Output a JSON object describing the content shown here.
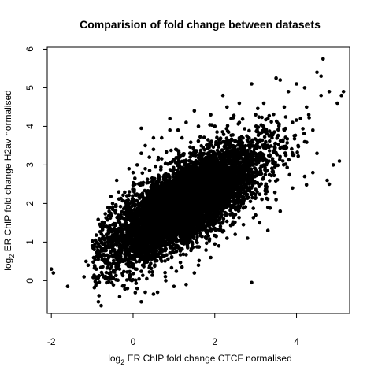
{
  "chart_data": {
    "type": "scatter",
    "title": "Comparision of fold change between datasets",
    "xlabel": {
      "prefix": "log",
      "sub": "2",
      "text": "  ER ChIP fold change CTCF normalised"
    },
    "ylabel": {
      "prefix": "log",
      "sub": "2",
      "text": "  ER ChIP fold change H2av normalised"
    },
    "xlim": [
      -2.1,
      5.3
    ],
    "ylim": [
      -0.85,
      6.05
    ],
    "x_ticks": [
      -2,
      0,
      2,
      4
    ],
    "x_tick_labels": [
      "-2",
      "0",
      "2",
      "4"
    ],
    "y_ticks": [
      0,
      1,
      2,
      3,
      4,
      5,
      6
    ],
    "y_tick_labels": [
      "0",
      "1",
      "2",
      "3",
      "4",
      "5",
      "6"
    ],
    "grid": false,
    "point_color": "#000000",
    "series": [
      {
        "points": [
          [
            -2.0,
            0.3
          ],
          [
            -1.95,
            0.2
          ],
          [
            -1.6,
            -0.15
          ],
          [
            -1.2,
            0.1
          ],
          [
            -1.1,
            0.4
          ],
          [
            -1.15,
            0.5
          ],
          [
            -0.9,
            0.3
          ],
          [
            -0.85,
            -0.55
          ],
          [
            -0.78,
            -0.65
          ],
          [
            -0.6,
            1.3
          ],
          [
            -0.5,
            0.8
          ],
          [
            -0.3,
            0.5
          ],
          [
            -0.1,
            2.9
          ],
          [
            0.2,
            3.3
          ],
          [
            0.3,
            3.5
          ],
          [
            0.2,
            3.95
          ],
          [
            0.5,
            3.4
          ],
          [
            0.2,
            -0.55
          ],
          [
            0.6,
            -0.3
          ],
          [
            0.5,
            3.7
          ],
          [
            0.9,
            4.2
          ],
          [
            0.9,
            3.9
          ],
          [
            1.2,
            3.7
          ],
          [
            1.5,
            4.4
          ],
          [
            1.3,
            4.1
          ],
          [
            1.6,
            4.0
          ],
          [
            2.3,
            4.5
          ],
          [
            2.2,
            4.8
          ],
          [
            2.6,
            4.1
          ],
          [
            2.9,
            5.1
          ],
          [
            3.0,
            4.3
          ],
          [
            3.2,
            4.6
          ],
          [
            3.5,
            5.25
          ],
          [
            3.6,
            5.2
          ],
          [
            3.7,
            4.5
          ],
          [
            3.8,
            4.9
          ],
          [
            4.0,
            5.1
          ],
          [
            4.2,
            5.0
          ],
          [
            4.3,
            4.3
          ],
          [
            4.4,
            3.9
          ],
          [
            4.2,
            3.6
          ],
          [
            4.5,
            5.4
          ],
          [
            4.6,
            5.3
          ],
          [
            4.6,
            4.8
          ],
          [
            4.65,
            5.75
          ],
          [
            4.8,
            4.9
          ],
          [
            5.0,
            4.6
          ],
          [
            5.1,
            4.8
          ],
          [
            5.15,
            4.9
          ],
          [
            5.05,
            3.1
          ],
          [
            4.9,
            3.0
          ],
          [
            4.8,
            2.5
          ],
          [
            4.5,
            3.3
          ],
          [
            4.75,
            2.6
          ],
          [
            4.4,
            2.8
          ],
          [
            4.2,
            2.7
          ],
          [
            2.9,
            -0.05
          ],
          [
            3.3,
            1.3
          ],
          [
            3.6,
            1.8
          ],
          [
            3.1,
            1.5
          ],
          [
            2.8,
            1.1
          ],
          [
            2.5,
            1.2
          ],
          [
            2.1,
            0.9
          ],
          [
            1.9,
            0.6
          ],
          [
            1.6,
            0.4
          ],
          [
            1.5,
            0.2
          ],
          [
            1.3,
            -0.1
          ],
          [
            1.0,
            -0.15
          ],
          [
            0.8,
            0.0
          ],
          [
            0.5,
            -0.35
          ],
          [
            0.3,
            -0.3
          ],
          [
            0.1,
            -0.2
          ],
          [
            -0.2,
            1.9
          ],
          [
            -0.3,
            1.7
          ],
          [
            -0.15,
            2.2
          ],
          [
            -0.5,
            2.0
          ],
          [
            -0.7,
            1.5
          ],
          [
            -0.65,
            1.2
          ],
          [
            -0.9,
            1.0
          ],
          [
            -1.0,
            0.9
          ],
          [
            -0.4,
            2.6
          ],
          [
            -0.35,
            2.3
          ],
          [
            0.05,
            2.5
          ],
          [
            0.1,
            3.0
          ],
          [
            0.0,
            2.8
          ],
          [
            0.3,
            2.9
          ],
          [
            1.9,
            4.3
          ],
          [
            2.6,
            4.6
          ],
          [
            3.3,
            4.2
          ],
          [
            3.9,
            4.1
          ],
          [
            4.1,
            4.2
          ],
          [
            3.4,
            3.7
          ],
          [
            3.7,
            3.9
          ],
          [
            1.2,
            0.35
          ],
          [
            2.0,
            0.95
          ],
          [
            2.3,
            1.1
          ],
          [
            2.7,
            1.45
          ],
          [
            3.0,
            1.7
          ],
          [
            3.3,
            1.9
          ],
          [
            3.5,
            2.1
          ],
          [
            3.9,
            2.4
          ],
          [
            0.7,
            3.7
          ],
          [
            1.1,
            3.9
          ],
          [
            0.4,
            3.2
          ],
          [
            2.0,
            4.0
          ],
          [
            2.4,
            4.2
          ]
        ]
      }
    ],
    "cloud": {
      "count": 6800,
      "x_mean": 1.25,
      "x_sd": 0.95,
      "slope": 0.6,
      "intercept": 1.25,
      "resid_sd": 0.5,
      "x_range": [
        -1.0,
        4.4
      ],
      "y_range": [
        -0.45,
        4.6
      ]
    }
  }
}
